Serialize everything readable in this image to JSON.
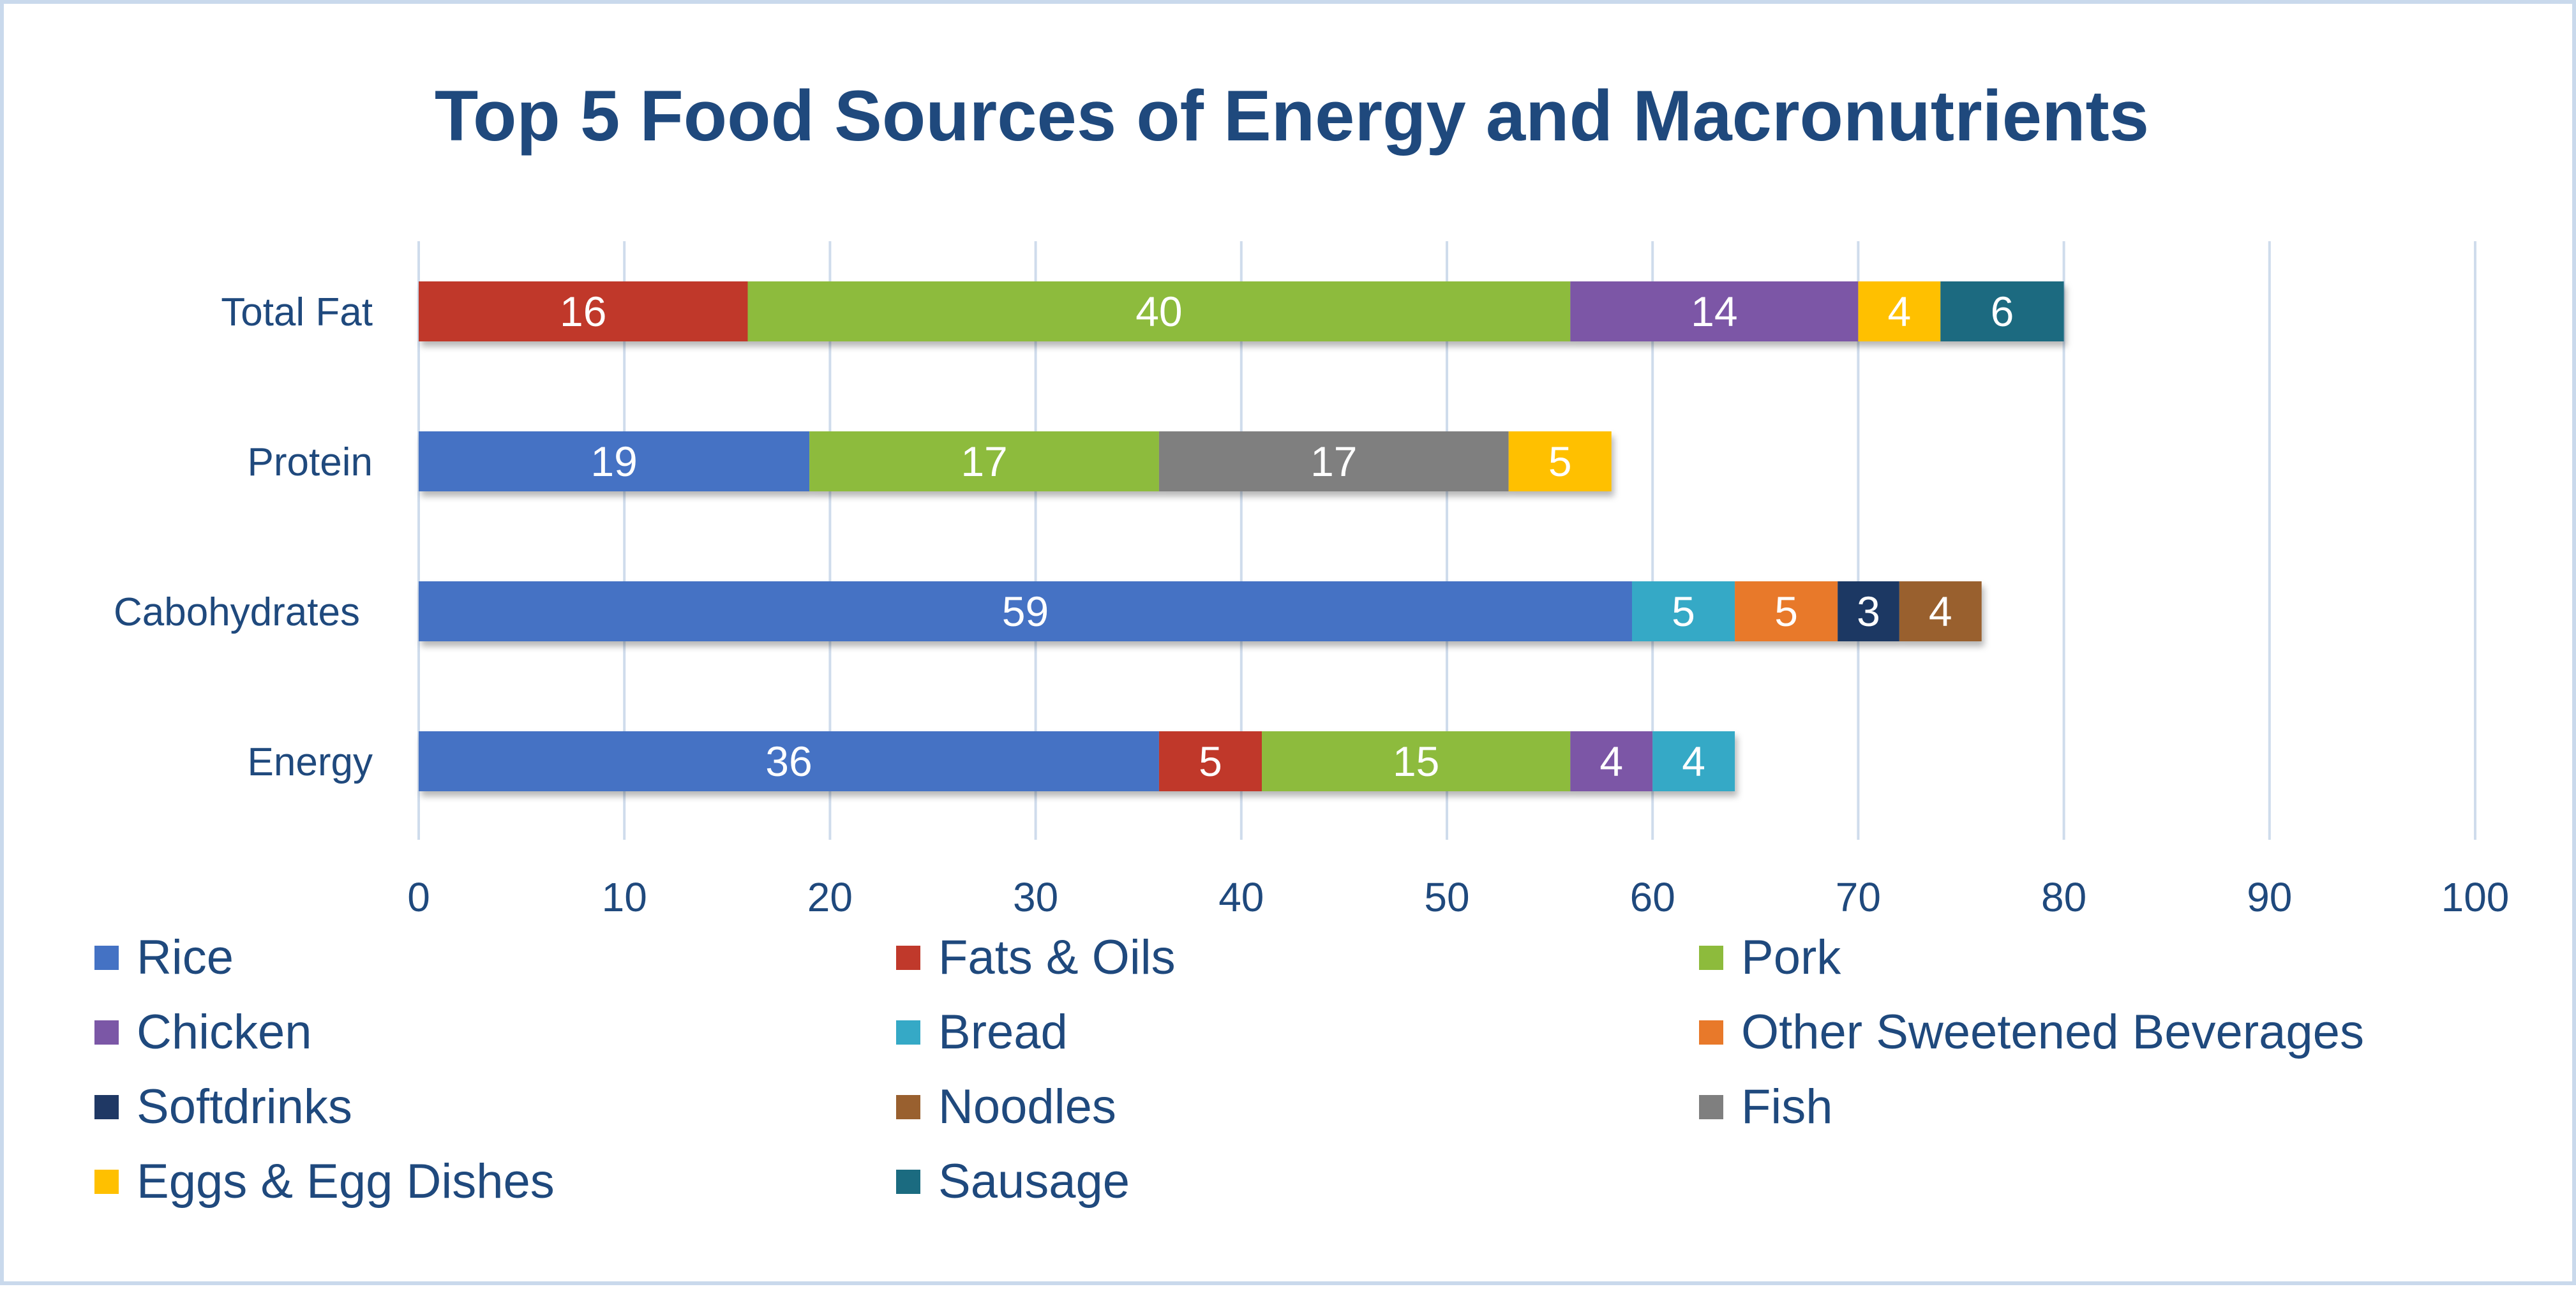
{
  "chart_data": {
    "type": "bar",
    "orientation": "horizontal",
    "stacked": true,
    "title": "Top 5 Food Sources of Energy and Macronutrients",
    "xlabel": "",
    "ylabel": "",
    "xlim": [
      0,
      100
    ],
    "x_ticks": [
      "0",
      "10",
      "20",
      "30",
      "40",
      "50",
      "60",
      "70",
      "80",
      "90",
      "100"
    ],
    "grid": "vertical",
    "legend_position": "bottom",
    "categories": [
      "Total Fat",
      "Protein",
      "Cabohydrates",
      "Energy"
    ],
    "series": [
      {
        "name": "Rice",
        "color": "#4472c4",
        "values": [
          null,
          19,
          59,
          36
        ]
      },
      {
        "name": "Fats & Oils",
        "color": "#c0392b",
        "values": [
          16,
          null,
          null,
          5
        ]
      },
      {
        "name": "Pork",
        "color": "#8dbb3c",
        "values": [
          40,
          17,
          null,
          15
        ]
      },
      {
        "name": "Chicken",
        "color": "#7b57a6",
        "values": [
          14,
          null,
          null,
          4
        ]
      },
      {
        "name": "Bread",
        "color": "#35a9c6",
        "values": [
          null,
          null,
          5,
          4
        ]
      },
      {
        "name": "Other Sweetened Beverages",
        "color": "#e8792a",
        "values": [
          null,
          null,
          5,
          null
        ]
      },
      {
        "name": "Softdrinks",
        "color": "#1f3864",
        "values": [
          null,
          null,
          3,
          null
        ]
      },
      {
        "name": "Noodles",
        "color": "#99602f",
        "values": [
          null,
          null,
          4,
          null
        ]
      },
      {
        "name": "Fish",
        "color": "#7f7f7f",
        "values": [
          null,
          17,
          null,
          null
        ]
      },
      {
        "name": "Eggs & Egg Dishes",
        "color": "#ffc000",
        "values": [
          4,
          5,
          null,
          null
        ]
      },
      {
        "name": "Sausage",
        "color": "#1b6b80",
        "values": [
          6,
          null,
          null,
          null
        ]
      }
    ]
  }
}
